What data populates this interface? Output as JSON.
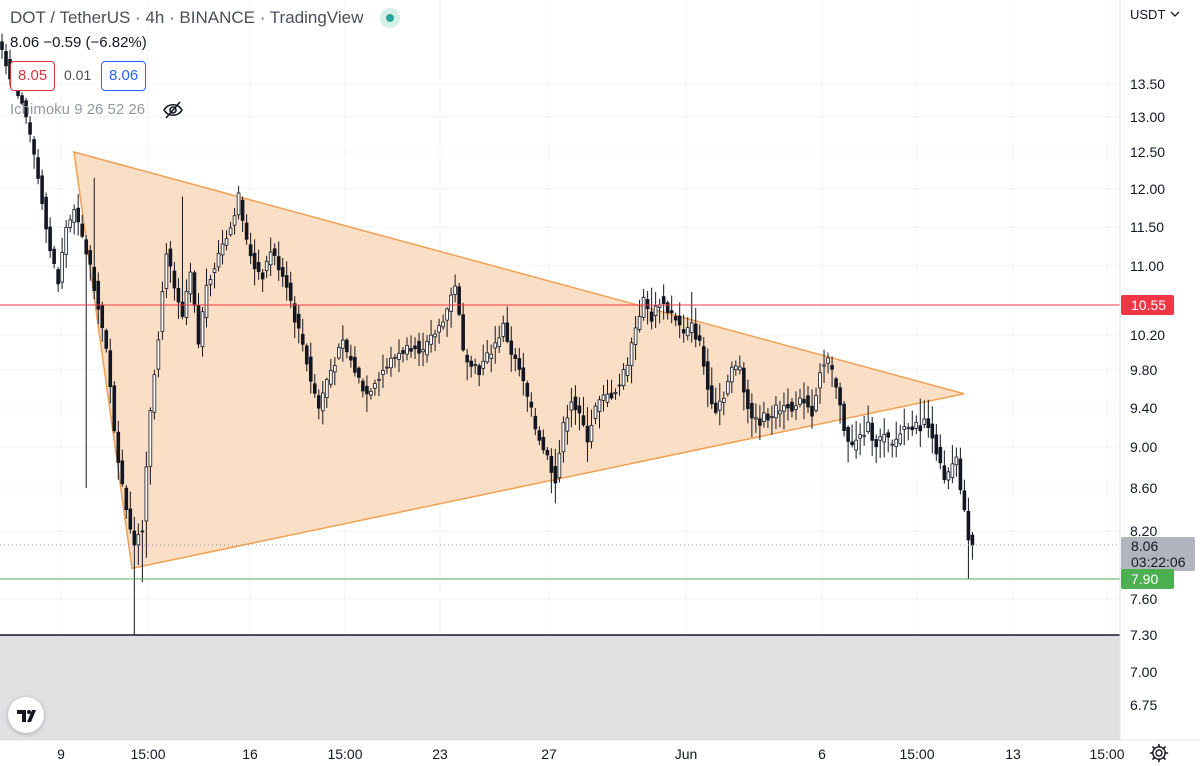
{
  "legend": {
    "title": "DOT / TetherUS · 4h · BINANCE · TradingView",
    "ohlc": "8.06 −0.59 (−6.82%)",
    "bid": "8.05",
    "spread": "0.01",
    "ask": "8.06",
    "indicator": "Ichimoku 9 26 52 26"
  },
  "icons": {
    "status": "live-status-dot-icon",
    "visibility": "eye-off-icon",
    "logo": "tradingview-logo-icon",
    "settings": "gear-icon"
  },
  "colors": {
    "bull": "#ffffff",
    "bear": "#131722",
    "triangle_fill": "#f9d9bc",
    "triangle_stroke": "#f0a050",
    "resistance": "#f23645",
    "support": "#4caf50",
    "gray_zone": "#e0e0e3",
    "current_price_bg": "#b2b5be",
    "support_label_bg": "#4caf50",
    "resistance_label_bg": "#f23645"
  },
  "chart_data": {
    "type": "candlestick",
    "y_unit": "USDT",
    "y_ticks": [
      "13.50",
      "13.00",
      "12.50",
      "12.00",
      "11.50",
      "11.00",
      "10.20",
      "9.80",
      "9.40",
      "9.00",
      "8.60",
      "8.20",
      "7.60",
      "7.30",
      "7.00",
      "6.75"
    ],
    "x_ticks": [
      "9",
      "15:00",
      "16",
      "15:00",
      "23",
      "27",
      "Jun",
      "6",
      "15:00",
      "13",
      "15:00"
    ],
    "horizontal_lines": [
      {
        "name": "resistance",
        "value": 10.55,
        "label": "10.55"
      },
      {
        "name": "support",
        "value": 7.9,
        "label": "7.90"
      },
      {
        "name": "range-bottom",
        "value": 7.3,
        "label": ""
      }
    ],
    "current_price": {
      "value": 8.06,
      "label": "8.06",
      "countdown": "03:22:06"
    },
    "symmetrical_triangle": {
      "top": {
        "from": 12.5,
        "to": 9.55
      },
      "bottom": {
        "from": 7.95,
        "to": 9.55
      }
    },
    "shaded_zone_below": 7.3,
    "keypoints": [
      {
        "x": 0,
        "y": 13.95
      },
      {
        "x": 3,
        "y": 13.45
      },
      {
        "x": 5,
        "y": 13.2
      },
      {
        "x": 8,
        "y": 12.45
      },
      {
        "x": 10,
        "y": 11.85
      },
      {
        "x": 12,
        "y": 11.2
      },
      {
        "x": 14,
        "y": 10.8
      },
      {
        "x": 16,
        "y": 11.5
      },
      {
        "x": 18,
        "y": 11.7
      },
      {
        "x": 20,
        "y": 11.35
      },
      {
        "x": 22,
        "y": 11.0
      },
      {
        "x": 24,
        "y": 10.55
      },
      {
        "x": 26,
        "y": 10.0
      },
      {
        "x": 28,
        "y": 9.2
      },
      {
        "x": 30,
        "y": 8.6
      },
      {
        "x": 32,
        "y": 8.25
      },
      {
        "x": 33,
        "y": 8.1
      },
      {
        "x": 35,
        "y": 8.25
      },
      {
        "x": 37,
        "y": 9.4
      },
      {
        "x": 39,
        "y": 10.2
      },
      {
        "x": 41,
        "y": 11.2
      },
      {
        "x": 43,
        "y": 10.7
      },
      {
        "x": 45,
        "y": 10.4
      },
      {
        "x": 47,
        "y": 10.9
      },
      {
        "x": 49,
        "y": 10.1
      },
      {
        "x": 51,
        "y": 10.8
      },
      {
        "x": 53,
        "y": 11.0
      },
      {
        "x": 55,
        "y": 11.3
      },
      {
        "x": 57,
        "y": 11.5
      },
      {
        "x": 59,
        "y": 11.9
      },
      {
        "x": 61,
        "y": 11.3
      },
      {
        "x": 63,
        "y": 11.0
      },
      {
        "x": 65,
        "y": 10.9
      },
      {
        "x": 67,
        "y": 11.2
      },
      {
        "x": 69,
        "y": 11.0
      },
      {
        "x": 71,
        "y": 10.8
      },
      {
        "x": 73,
        "y": 10.4
      },
      {
        "x": 75,
        "y": 10.1
      },
      {
        "x": 77,
        "y": 9.7
      },
      {
        "x": 79,
        "y": 9.4
      },
      {
        "x": 81,
        "y": 9.7
      },
      {
        "x": 83,
        "y": 9.9
      },
      {
        "x": 85,
        "y": 10.1
      },
      {
        "x": 87,
        "y": 9.9
      },
      {
        "x": 89,
        "y": 9.7
      },
      {
        "x": 91,
        "y": 9.55
      },
      {
        "x": 93,
        "y": 9.7
      },
      {
        "x": 95,
        "y": 9.8
      },
      {
        "x": 97,
        "y": 9.9
      },
      {
        "x": 99,
        "y": 10.0
      },
      {
        "x": 101,
        "y": 10.05
      },
      {
        "x": 103,
        "y": 10.1
      },
      {
        "x": 105,
        "y": 10.0
      },
      {
        "x": 107,
        "y": 10.15
      },
      {
        "x": 109,
        "y": 10.3
      },
      {
        "x": 111,
        "y": 10.5
      },
      {
        "x": 113,
        "y": 10.8
      },
      {
        "x": 115,
        "y": 10.0
      },
      {
        "x": 117,
        "y": 9.9
      },
      {
        "x": 119,
        "y": 9.8
      },
      {
        "x": 121,
        "y": 9.95
      },
      {
        "x": 123,
        "y": 10.1
      },
      {
        "x": 125,
        "y": 10.3
      },
      {
        "x": 127,
        "y": 10.0
      },
      {
        "x": 129,
        "y": 9.8
      },
      {
        "x": 131,
        "y": 9.5
      },
      {
        "x": 133,
        "y": 9.2
      },
      {
        "x": 135,
        "y": 9.0
      },
      {
        "x": 137,
        "y": 8.8
      },
      {
        "x": 138,
        "y": 8.7
      },
      {
        "x": 140,
        "y": 9.2
      },
      {
        "x": 142,
        "y": 9.5
      },
      {
        "x": 144,
        "y": 9.3
      },
      {
        "x": 146,
        "y": 9.1
      },
      {
        "x": 148,
        "y": 9.4
      },
      {
        "x": 150,
        "y": 9.5
      },
      {
        "x": 152,
        "y": 9.55
      },
      {
        "x": 154,
        "y": 9.65
      },
      {
        "x": 156,
        "y": 9.9
      },
      {
        "x": 158,
        "y": 10.3
      },
      {
        "x": 160,
        "y": 10.6
      },
      {
        "x": 162,
        "y": 10.4
      },
      {
        "x": 164,
        "y": 10.6
      },
      {
        "x": 166,
        "y": 10.5
      },
      {
        "x": 168,
        "y": 10.4
      },
      {
        "x": 170,
        "y": 10.2
      },
      {
        "x": 172,
        "y": 10.3
      },
      {
        "x": 174,
        "y": 10.1
      },
      {
        "x": 176,
        "y": 9.6
      },
      {
        "x": 178,
        "y": 9.4
      },
      {
        "x": 180,
        "y": 9.55
      },
      {
        "x": 182,
        "y": 9.8
      },
      {
        "x": 184,
        "y": 9.85
      },
      {
        "x": 186,
        "y": 9.4
      },
      {
        "x": 188,
        "y": 9.25
      },
      {
        "x": 190,
        "y": 9.3
      },
      {
        "x": 192,
        "y": 9.35
      },
      {
        "x": 194,
        "y": 9.4
      },
      {
        "x": 196,
        "y": 9.45
      },
      {
        "x": 198,
        "y": 9.4
      },
      {
        "x": 200,
        "y": 9.5
      },
      {
        "x": 202,
        "y": 9.35
      },
      {
        "x": 204,
        "y": 9.8
      },
      {
        "x": 206,
        "y": 9.9
      },
      {
        "x": 208,
        "y": 9.6
      },
      {
        "x": 210,
        "y": 9.2
      },
      {
        "x": 212,
        "y": 9.0
      },
      {
        "x": 214,
        "y": 9.1
      },
      {
        "x": 216,
        "y": 9.2
      },
      {
        "x": 218,
        "y": 9.05
      },
      {
        "x": 220,
        "y": 9.1
      },
      {
        "x": 222,
        "y": 9.0
      },
      {
        "x": 224,
        "y": 9.15
      },
      {
        "x": 226,
        "y": 9.25
      },
      {
        "x": 228,
        "y": 9.2
      },
      {
        "x": 230,
        "y": 9.25
      },
      {
        "x": 232,
        "y": 9.15
      },
      {
        "x": 234,
        "y": 8.8
      },
      {
        "x": 235,
        "y": 8.65
      },
      {
        "x": 237,
        "y": 8.8
      },
      {
        "x": 238,
        "y": 8.85
      },
      {
        "x": 239,
        "y": 8.6
      },
      {
        "x": 240,
        "y": 8.35
      },
      {
        "x": 241,
        "y": 8.15
      },
      {
        "x": 242,
        "y": 8.06
      }
    ],
    "extremes": [
      {
        "x": 33,
        "y": 7.3
      },
      {
        "x": 35,
        "y": 7.85
      },
      {
        "x": 36,
        "y": 8.0
      },
      {
        "x": 21,
        "y": 8.6
      },
      {
        "x": 23,
        "y": 12.15
      },
      {
        "x": 45,
        "y": 11.9
      },
      {
        "x": 60,
        "y": 11.9
      },
      {
        "x": 112,
        "y": 10.75
      },
      {
        "x": 137,
        "y": 8.55
      },
      {
        "x": 162,
        "y": 10.75
      },
      {
        "x": 172,
        "y": 10.7
      },
      {
        "x": 206,
        "y": 10.0
      },
      {
        "x": 211,
        "y": 8.85
      },
      {
        "x": 229,
        "y": 9.5
      },
      {
        "x": 241,
        "y": 7.9
      }
    ],
    "domain": {
      "x": [
        0,
        242
      ],
      "y": [
        6.6,
        14.1
      ]
    }
  }
}
